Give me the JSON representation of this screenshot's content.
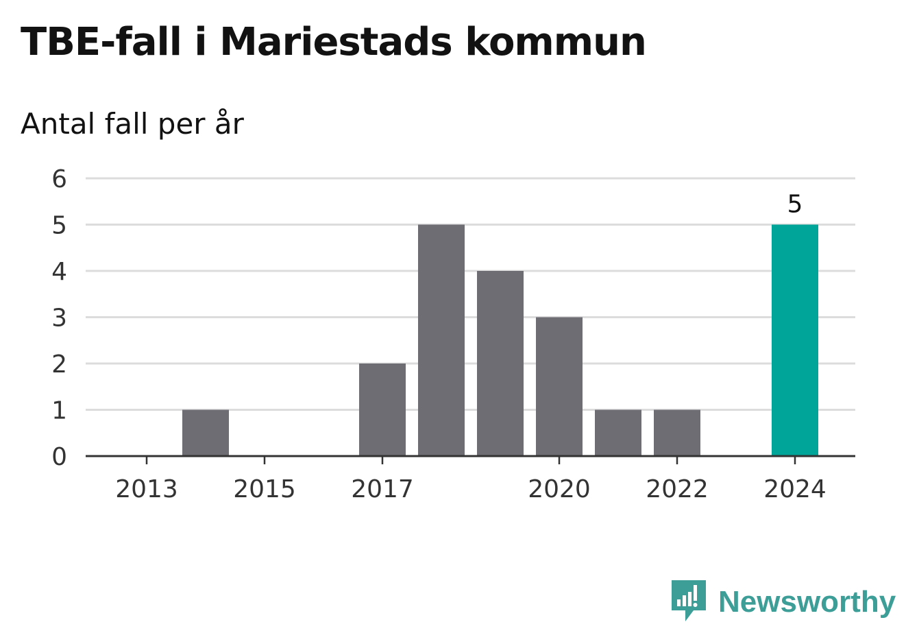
{
  "header": {
    "title": "TBE-fall i Mariestads kommun",
    "subtitle": "Antal fall per år"
  },
  "brand": {
    "name": "Newsworthy",
    "color": "#3d9e98",
    "icon": "newsworthy-logo-icon"
  },
  "colors": {
    "bar": "#6e6d73",
    "highlight": "#00a59a",
    "grid": "#dcdcdc",
    "axis": "#333333"
  },
  "chart_data": {
    "type": "bar",
    "title": "TBE-fall i Mariestads kommun",
    "subtitle": "Antal fall per år",
    "xlabel": "",
    "ylabel": "",
    "categories": [
      2013,
      2014,
      2015,
      2016,
      2017,
      2018,
      2019,
      2020,
      2021,
      2022,
      2023,
      2024
    ],
    "values": [
      0,
      1,
      0,
      0,
      2,
      5,
      4,
      3,
      1,
      1,
      0,
      5
    ],
    "highlight_category": 2024,
    "data_labels": [
      {
        "category": 2024,
        "value": 5
      }
    ],
    "x_tick_labels": [
      "2013",
      "2015",
      "2017",
      "2020",
      "2022",
      "2024"
    ],
    "y_ticks": [
      0,
      1,
      2,
      3,
      4,
      5,
      6
    ],
    "ylim": [
      0,
      6
    ],
    "grid": true,
    "legend": "none"
  }
}
